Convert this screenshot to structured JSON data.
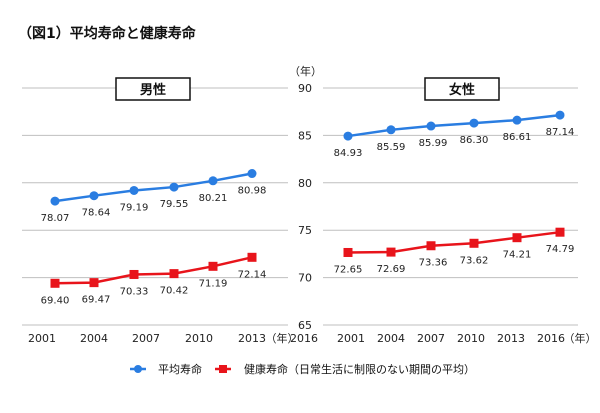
{
  "chart_data": {
    "type": "line",
    "title": "（図1）平均寿命と健康寿命",
    "x": [
      "2001",
      "2004",
      "2007",
      "2010",
      "2013",
      "2016"
    ],
    "x_unit": "（年）",
    "y_unit": "（年）",
    "ylim": [
      65,
      90
    ],
    "yticks": [
      "90",
      "85",
      "80",
      "75",
      "70",
      "65"
    ],
    "grid": true,
    "legend_position": "bottom",
    "legend": [
      {
        "name": "平均寿命",
        "color": "#2a7de1",
        "marker": "circle"
      },
      {
        "name": "健康寿命（日常生活に制限のない期間の平均）",
        "color": "#e8141b",
        "marker": "square"
      }
    ],
    "panels": [
      {
        "label": "男性",
        "series": [
          {
            "name": "平均寿命",
            "values": [
              78.07,
              78.64,
              79.19,
              79.55,
              80.21,
              80.98
            ],
            "labels": [
              "78.07",
              "78.64",
              "79.19",
              "79.55",
              "80.21",
              "80.98"
            ]
          },
          {
            "name": "健康寿命（日常生活に制限のない期間の平均）",
            "values": [
              69.4,
              69.47,
              70.33,
              70.42,
              71.19,
              72.14
            ],
            "labels": [
              "69.40",
              "69.47",
              "70.33",
              "70.42",
              "71.19",
              "72.14"
            ]
          }
        ]
      },
      {
        "label": "女性",
        "series": [
          {
            "name": "平均寿命",
            "values": [
              84.93,
              85.59,
              85.99,
              86.3,
              86.61,
              87.14
            ],
            "labels": [
              "84.93",
              "85.59",
              "85.99",
              "86.30",
              "86.61",
              "87.14"
            ]
          },
          {
            "name": "健康寿命（日常生活に制限のない期間の平均）",
            "values": [
              72.65,
              72.69,
              73.36,
              73.62,
              74.21,
              74.79
            ],
            "labels": [
              "72.65",
              "72.69",
              "73.36",
              "73.62",
              "74.21",
              "74.79"
            ]
          }
        ]
      }
    ]
  }
}
